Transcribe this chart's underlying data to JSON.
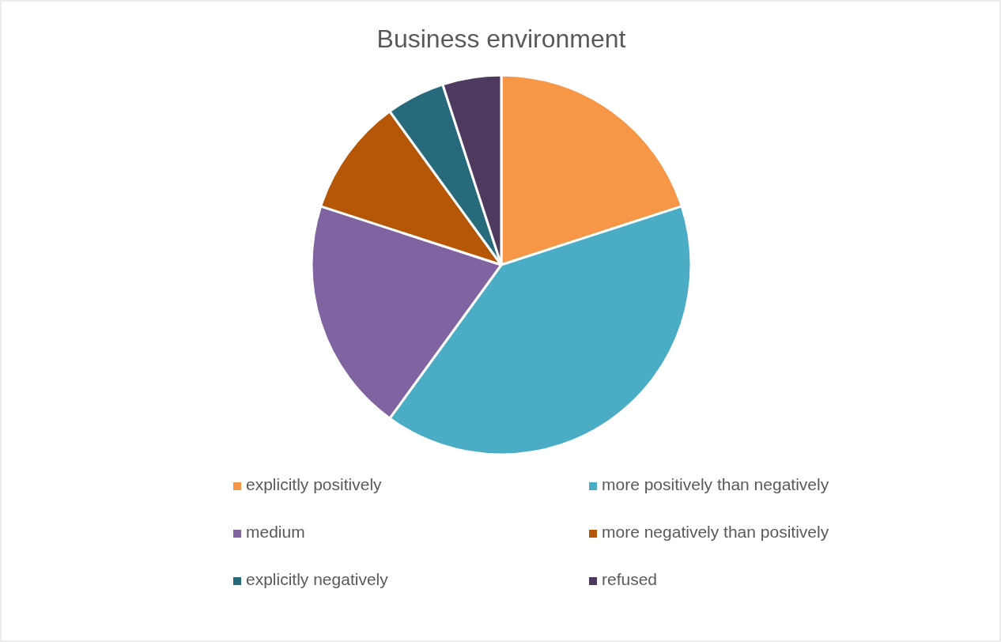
{
  "chart_data": {
    "type": "pie",
    "title": "Business environment",
    "categories": [
      "explicitly positively",
      "more positively than negatively",
      "medium",
      "more negatively than positively",
      "explicitly negatively",
      "refused"
    ],
    "values": [
      20,
      40,
      20,
      10,
      5,
      5
    ],
    "colors": [
      "#f79646",
      "#4bacc6",
      "#8064a2",
      "#b65708",
      "#276a7c",
      "#4f3a5f"
    ],
    "legend": "bottom"
  }
}
